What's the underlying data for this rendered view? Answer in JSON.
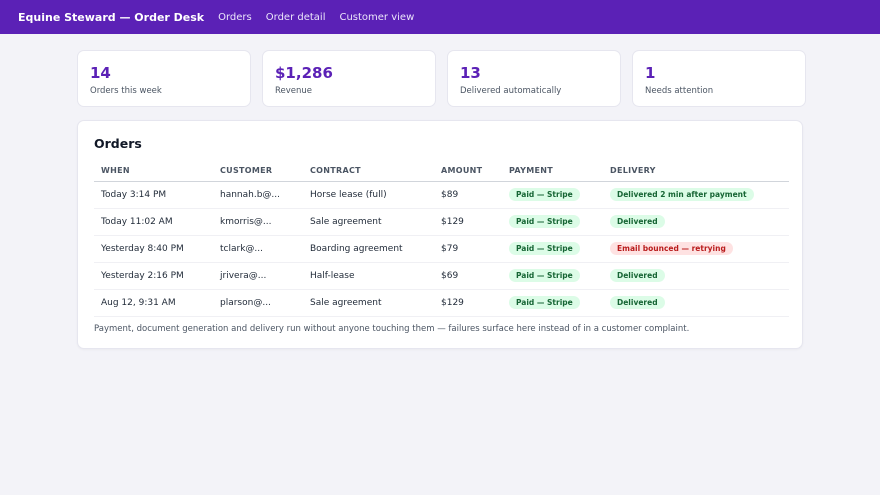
{
  "header": {
    "brand": "Equine Steward — Order Desk",
    "nav": [
      "Orders",
      "Order detail",
      "Customer view"
    ]
  },
  "stats": [
    {
      "value": "14",
      "label": "Orders this week"
    },
    {
      "value": "$1,286",
      "label": "Revenue"
    },
    {
      "value": "13",
      "label": "Delivered automatically"
    },
    {
      "value": "1",
      "label": "Needs attention"
    }
  ],
  "orders": {
    "title": "Orders",
    "columns": [
      "WHEN",
      "CUSTOMER",
      "CONTRACT",
      "AMOUNT",
      "PAYMENT",
      "DELIVERY"
    ],
    "rows": [
      {
        "when": "Today 3:14 PM",
        "customer": "hannah.b@...",
        "contract": "Horse lease (full)",
        "amount": "$89",
        "payment": "Paid — Stripe",
        "delivery": "Delivered 2 min after payment",
        "delivery_status": "ok"
      },
      {
        "when": "Today 11:02 AM",
        "customer": "kmorris@...",
        "contract": "Sale agreement",
        "amount": "$129",
        "payment": "Paid — Stripe",
        "delivery": "Delivered",
        "delivery_status": "ok"
      },
      {
        "when": "Yesterday 8:40 PM",
        "customer": "tclark@...",
        "contract": "Boarding agreement",
        "amount": "$79",
        "payment": "Paid — Stripe",
        "delivery": "Email bounced — retrying",
        "delivery_status": "error"
      },
      {
        "when": "Yesterday 2:16 PM",
        "customer": "jrivera@...",
        "contract": "Half-lease",
        "amount": "$69",
        "payment": "Paid — Stripe",
        "delivery": "Delivered",
        "delivery_status": "ok"
      },
      {
        "when": "Aug 12, 9:31 AM",
        "customer": "plarson@...",
        "contract": "Sale agreement",
        "amount": "$129",
        "payment": "Paid — Stripe",
        "delivery": "Delivered",
        "delivery_status": "ok"
      }
    ],
    "footnote": "Payment, document generation and delivery run without anyone touching them — failures surface here instead of in a customer complaint."
  },
  "colors": {
    "accent": "#5b21b6",
    "success_bg": "#dcfce7",
    "success_text": "#166534",
    "error_bg": "#fee2e2",
    "error_text": "#b91c1c"
  }
}
